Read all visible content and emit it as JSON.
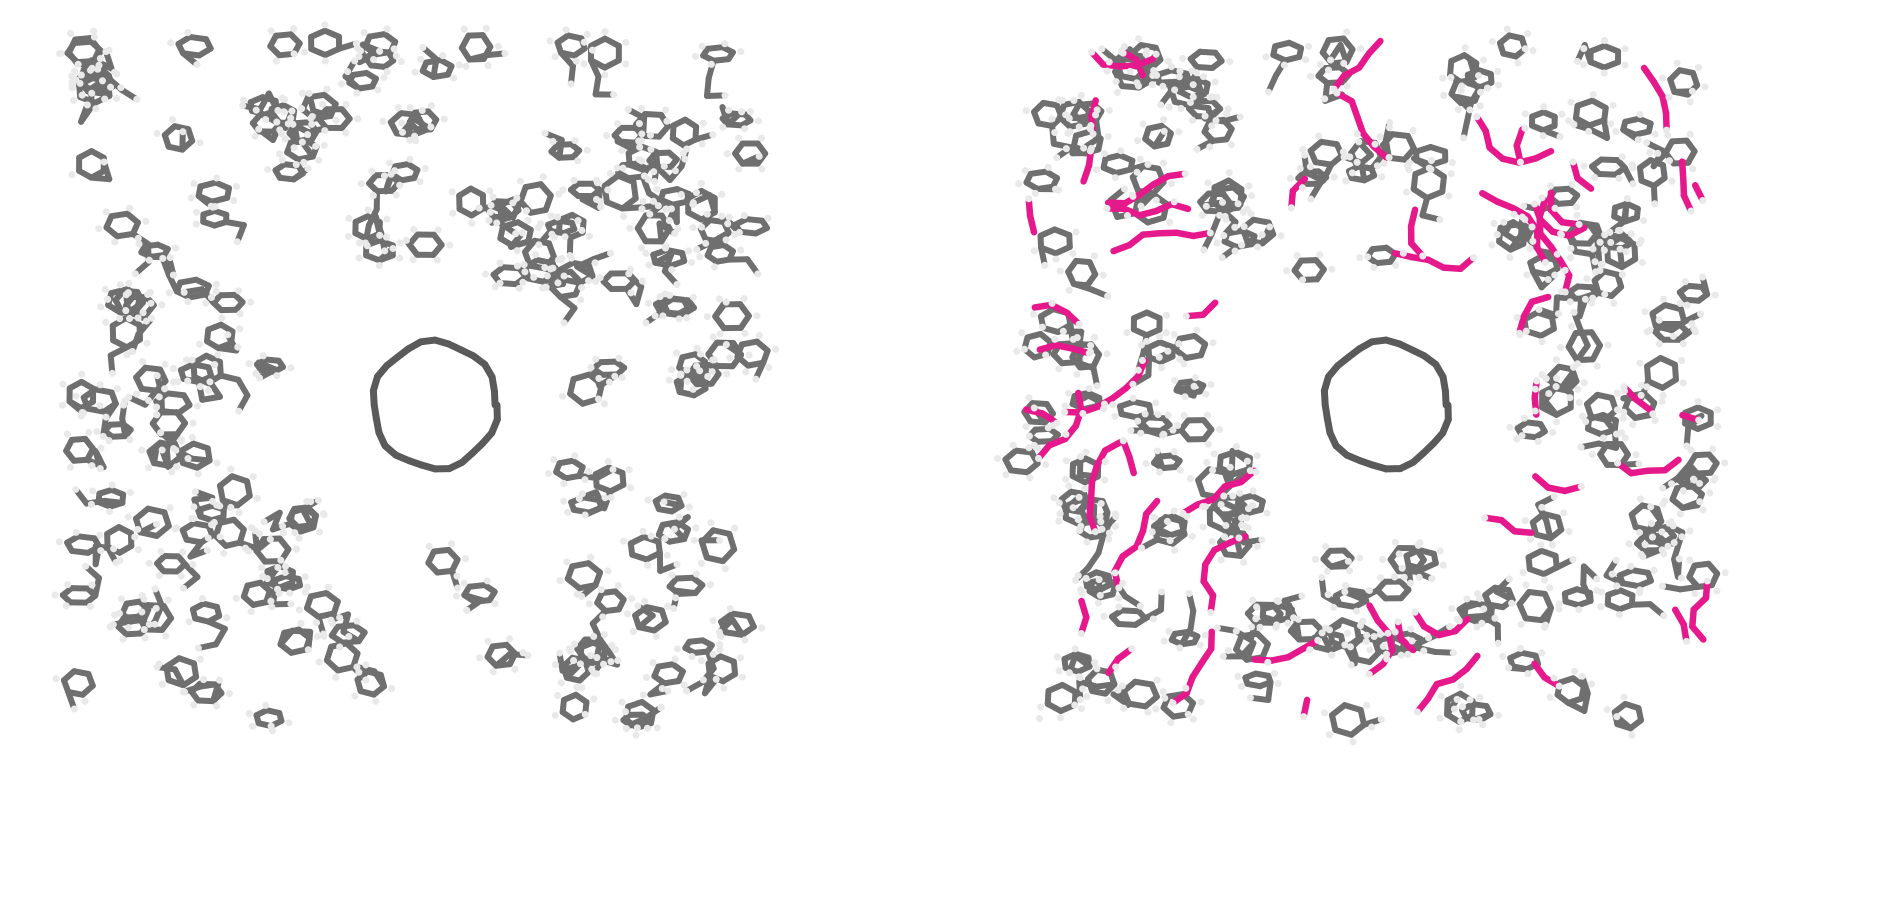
{
  "figure": {
    "panels": [
      {
        "id": "left",
        "description_name": "molecular-model-grey",
        "bond_color": "#6f6f6f",
        "hydrogen_color": "#e9e9e9",
        "highlight_color": null,
        "ring_color": "#5a5a5a",
        "highlighted": false
      },
      {
        "id": "right",
        "description_name": "molecular-model-highlighted",
        "bond_color": "#6f6f6f",
        "hydrogen_color": "#e9e9e9",
        "highlight_color": "#e6198c",
        "ring_color": "#5a5a5a",
        "highlighted": true
      }
    ]
  }
}
